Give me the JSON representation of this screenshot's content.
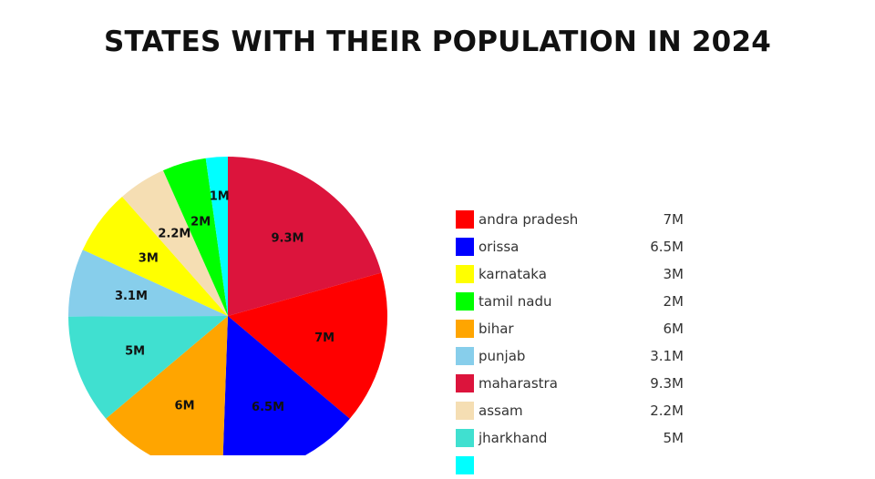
{
  "title": "STATES WITH THEIR POPULATION IN 2024",
  "chart_data": {
    "type": "pie",
    "title": "STATES WITH THEIR POPULATION IN 2024",
    "slices": [
      {
        "name": "maharastra",
        "value": 9.3,
        "label": "9.3M",
        "color": "#dc143c"
      },
      {
        "name": "andra pradesh",
        "value": 7,
        "label": "7M",
        "color": "#ff0000"
      },
      {
        "name": "orissa",
        "value": 6.5,
        "label": "6.5M",
        "color": "#0000ff"
      },
      {
        "name": "bihar",
        "value": 6,
        "label": "6M",
        "color": "#ffa500"
      },
      {
        "name": "jharkhand",
        "value": 5,
        "label": "5M",
        "color": "#40e0d0"
      },
      {
        "name": "punjab",
        "value": 3.1,
        "label": "3.1M",
        "color": "#87ceeb"
      },
      {
        "name": "karnataka",
        "value": 3,
        "label": "3M",
        "color": "#ffff00"
      },
      {
        "name": "assam",
        "value": 2.2,
        "label": "2.2M",
        "color": "#f5deb3"
      },
      {
        "name": "tamil nadu",
        "value": 2,
        "label": "2M",
        "color": "#00ff00"
      },
      {
        "name": "",
        "value": 1,
        "label": "1M",
        "color": "#00ffff"
      }
    ],
    "legend_position": "right"
  },
  "legend": [
    {
      "name": "andra pradesh",
      "value": "7M",
      "color": "#ff0000"
    },
    {
      "name": "orissa",
      "value": "6.5M",
      "color": "#0000ff"
    },
    {
      "name": "karnataka",
      "value": "3M",
      "color": "#ffff00"
    },
    {
      "name": "tamil nadu",
      "value": "2M",
      "color": "#00ff00"
    },
    {
      "name": "bihar",
      "value": "6M",
      "color": "#ffa500"
    },
    {
      "name": "punjab",
      "value": "3.1M",
      "color": "#87ceeb"
    },
    {
      "name": "maharastra",
      "value": "9.3M",
      "color": "#dc143c"
    },
    {
      "name": "assam",
      "value": "2.2M",
      "color": "#f5deb3"
    },
    {
      "name": "jharkhand",
      "value": "5M",
      "color": "#40e0d0"
    },
    {
      "name": "",
      "value": "",
      "color": "#00ffff"
    }
  ]
}
